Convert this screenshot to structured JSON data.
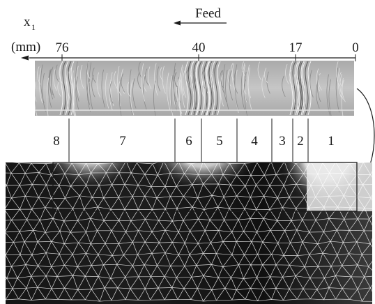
{
  "axis": {
    "variable": "x",
    "subscript": "1",
    "unit": "(mm)",
    "tick_labels": [
      "76",
      "40",
      "17",
      "0"
    ]
  },
  "feed": {
    "label": "Feed"
  },
  "zones": [
    {
      "number": "8"
    },
    {
      "number": "7"
    },
    {
      "number": "6"
    },
    {
      "number": "5"
    },
    {
      "number": "4"
    },
    {
      "number": "3"
    },
    {
      "number": "2"
    },
    {
      "number": "1"
    }
  ],
  "colors": {
    "ink": "#1a1a1a",
    "strip_background": "#bdbdbd",
    "mesh_line": "#ffffff",
    "mesh_background": "#111111"
  }
}
